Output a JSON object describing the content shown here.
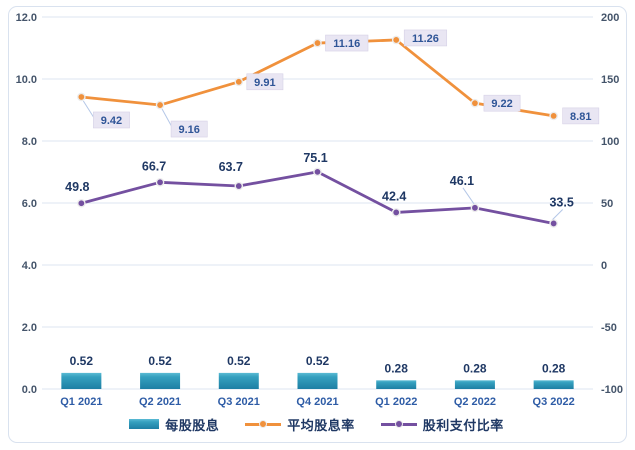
{
  "chart_data": {
    "type": "combo",
    "title": "",
    "categories": [
      "Q1 2021",
      "Q2 2021",
      "Q3 2021",
      "Q4 2021",
      "Q1 2022",
      "Q2 2022",
      "Q3 2022"
    ],
    "left_axis": {
      "min": 0,
      "max": 12,
      "tick_values": [
        12,
        10,
        8,
        6,
        4,
        2,
        0
      ],
      "tick_labels": [
        "12.0",
        "10.0",
        "8.0",
        "6.0",
        "4.0",
        "2.0",
        "0.0"
      ]
    },
    "right_axis": {
      "min": -100,
      "max": 200,
      "tick_values": [
        200,
        150,
        100,
        50,
        0,
        -50,
        -100
      ],
      "tick_labels": [
        "200",
        "150",
        "100",
        "50",
        "0",
        "-50",
        "-100"
      ]
    },
    "grid": true,
    "legend_position": "bottom",
    "series": [
      {
        "name": "每股股息",
        "type": "bar",
        "axis": "left",
        "values": [
          0.52,
          0.52,
          0.52,
          0.52,
          0.28,
          0.28,
          0.28
        ],
        "point_labels": [
          {
            "text": "0.52"
          },
          {
            "text": "0.52"
          },
          {
            "text": "0.52"
          },
          {
            "text": "0.52"
          },
          {
            "text": "0.28"
          },
          {
            "text": "0.28"
          },
          {
            "text": "0.28"
          }
        ],
        "colors": {
          "top": "#5BBBD4",
          "mid": "#35A0BF",
          "bottom": "#1D7FA4"
        }
      },
      {
        "name": "平均股息率",
        "type": "line",
        "axis": "left",
        "color": "#F0913C",
        "values": [
          9.42,
          9.16,
          9.91,
          11.16,
          11.26,
          9.22,
          8.81
        ],
        "point_labels": [
          {
            "text": "9.42",
            "style": "boxed",
            "dx": 12,
            "dy": 15,
            "leader": true
          },
          {
            "text": "9.16",
            "style": "boxed",
            "dx": 11,
            "dy": 16,
            "leader": true
          },
          {
            "text": "9.91",
            "style": "boxed",
            "dx": 8,
            "dy": 0
          },
          {
            "text": "11.16",
            "style": "boxed",
            "dx": 8,
            "dy": 0
          },
          {
            "text": "11.26",
            "style": "boxed",
            "dx": 8,
            "dy": -2
          },
          {
            "text": "9.22",
            "style": "boxed",
            "dx": 9,
            "dy": 0
          },
          {
            "text": "8.81",
            "style": "boxed",
            "dx": 9,
            "dy": 0
          }
        ]
      },
      {
        "name": "股利支付比率",
        "type": "line",
        "axis": "right",
        "color": "#7450A0",
        "values": [
          49.8,
          66.7,
          63.7,
          75.1,
          42.4,
          46.1,
          33.5
        ],
        "point_labels": [
          {
            "text": "49.8",
            "style": "bold",
            "dx": -4,
            "dy": -16
          },
          {
            "text": "66.7",
            "style": "bold",
            "dx": -6,
            "dy": -16
          },
          {
            "text": "63.7",
            "style": "bold",
            "dx": -8,
            "dy": -19
          },
          {
            "text": "75.1",
            "style": "bold",
            "dx": -2,
            "dy": -14
          },
          {
            "text": "42.4",
            "style": "bold",
            "dx": -2,
            "dy": -16
          },
          {
            "text": "46.1",
            "style": "bold",
            "dx": -13,
            "dy": -27,
            "leader": true
          },
          {
            "text": "33.5",
            "style": "bold",
            "dx": 8,
            "dy": -21,
            "leader": true
          }
        ]
      }
    ],
    "colors": {
      "grid": "#DCE4F0",
      "tick_text": "#44546A",
      "x_label": "#2E5CA6",
      "data_label": "#1F3864",
      "callout_bg": "#E9E6F3",
      "callout_border": "#D6D1E6",
      "callout_text": "#2F5597",
      "leader": "#B4C7E7",
      "marker_ring": "#ECECEC",
      "card_border": "#D9E2EF"
    }
  }
}
